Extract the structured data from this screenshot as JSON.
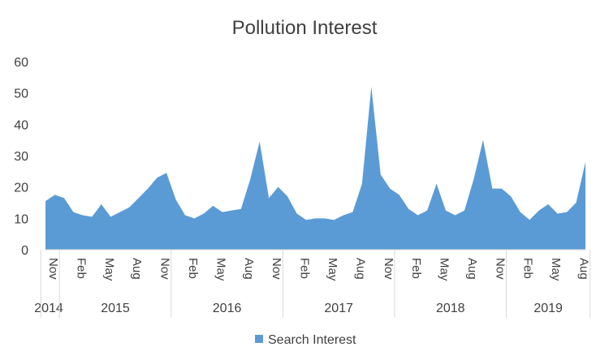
{
  "chart_data": {
    "type": "area",
    "title": "Pollution Interest",
    "xlabel": "",
    "ylabel": "",
    "ylim": [
      0,
      60
    ],
    "yticks": [
      0,
      10,
      20,
      30,
      40,
      50,
      60
    ],
    "grid": false,
    "legend_position": "bottom",
    "color": "#5B9BD5",
    "x": [
      "2014-11",
      "2014-12",
      "2015-01",
      "2015-02",
      "2015-03",
      "2015-04",
      "2015-05",
      "2015-06",
      "2015-07",
      "2015-08",
      "2015-09",
      "2015-10",
      "2015-11",
      "2015-12",
      "2016-01",
      "2016-02",
      "2016-03",
      "2016-04",
      "2016-05",
      "2016-06",
      "2016-07",
      "2016-08",
      "2016-09",
      "2016-10",
      "2016-11",
      "2016-12",
      "2017-01",
      "2017-02",
      "2017-03",
      "2017-04",
      "2017-05",
      "2017-06",
      "2017-07",
      "2017-08",
      "2017-09",
      "2017-10",
      "2017-11",
      "2017-12",
      "2018-01",
      "2018-02",
      "2018-03",
      "2018-04",
      "2018-05",
      "2018-06",
      "2018-07",
      "2018-08",
      "2018-09",
      "2018-10",
      "2018-11",
      "2018-12",
      "2019-01",
      "2019-02",
      "2019-03",
      "2019-04",
      "2019-05",
      "2019-06",
      "2019-07",
      "2019-08",
      "2019-09"
    ],
    "month_labels": [
      {
        "index": 0,
        "label": "Nov"
      },
      {
        "index": 3,
        "label": "Feb"
      },
      {
        "index": 6,
        "label": "May"
      },
      {
        "index": 9,
        "label": "Aug"
      },
      {
        "index": 12,
        "label": "Nov"
      },
      {
        "index": 15,
        "label": "Feb"
      },
      {
        "index": 18,
        "label": "May"
      },
      {
        "index": 21,
        "label": "Aug"
      },
      {
        "index": 24,
        "label": "Nov"
      },
      {
        "index": 27,
        "label": "Feb"
      },
      {
        "index": 30,
        "label": "May"
      },
      {
        "index": 33,
        "label": "Aug"
      },
      {
        "index": 36,
        "label": "Nov"
      },
      {
        "index": 39,
        "label": "Feb"
      },
      {
        "index": 42,
        "label": "May"
      },
      {
        "index": 45,
        "label": "Aug"
      },
      {
        "index": 48,
        "label": "Nov"
      },
      {
        "index": 51,
        "label": "Feb"
      },
      {
        "index": 54,
        "label": "May"
      },
      {
        "index": 57,
        "label": "Aug"
      }
    ],
    "year_groups": [
      {
        "label": "2014",
        "start": 0,
        "end": 1
      },
      {
        "label": "2015",
        "start": 2,
        "end": 13
      },
      {
        "label": "2016",
        "start": 14,
        "end": 25
      },
      {
        "label": "2017",
        "start": 26,
        "end": 37
      },
      {
        "label": "2018",
        "start": 38,
        "end": 49
      },
      {
        "label": "2019",
        "start": 50,
        "end": 58
      }
    ],
    "series": [
      {
        "name": "Search Interest",
        "values": [
          15.5,
          17.5,
          16.5,
          12,
          11,
          10.5,
          14.5,
          10.5,
          12,
          13.5,
          16.5,
          19.5,
          23,
          24.5,
          16,
          11,
          10,
          11.5,
          14,
          12,
          12.5,
          13,
          22.5,
          34.5,
          16.5,
          20,
          17,
          11.5,
          9.5,
          10,
          10,
          9.5,
          11,
          12,
          21,
          52,
          24,
          19.5,
          17.5,
          13,
          11,
          12.5,
          21,
          12.5,
          11,
          12.5,
          22.5,
          35,
          19.5,
          19.5,
          17,
          12,
          9.5,
          12.5,
          14.5,
          11.5,
          12,
          15,
          28
        ]
      }
    ]
  }
}
